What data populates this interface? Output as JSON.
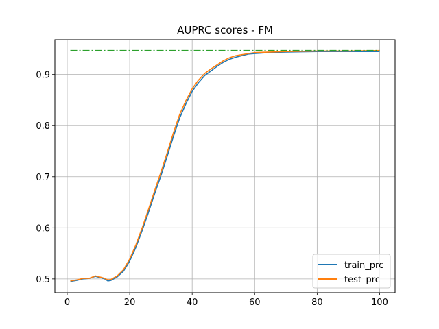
{
  "chart_data": {
    "type": "line",
    "title": "AUPRC scores - FM",
    "xlabel": "",
    "ylabel": "",
    "xlim": [
      -3.95,
      104.95
    ],
    "ylim": [
      0.473,
      0.968
    ],
    "xticks": [
      0,
      20,
      40,
      60,
      80,
      100
    ],
    "yticks": [
      0.5,
      0.6,
      0.7,
      0.8,
      0.9
    ],
    "ytick_labels": [
      "0.5",
      "0.6",
      "0.7",
      "0.8",
      "0.9"
    ],
    "grid": true,
    "legend_position": "lower-right",
    "colors": {
      "train_prc": "#1f77b4",
      "test_prc": "#ff7f0e",
      "reference": "#2ca02c"
    },
    "series": [
      {
        "name": "train_prc",
        "style": "solid",
        "points": [
          [
            1,
            0.495
          ],
          [
            3,
            0.497
          ],
          [
            5,
            0.5
          ],
          [
            7,
            0.501
          ],
          [
            9,
            0.505
          ],
          [
            11,
            0.502
          ],
          [
            12,
            0.5
          ],
          [
            13,
            0.496
          ],
          [
            14,
            0.497
          ],
          [
            16,
            0.504
          ],
          [
            18,
            0.515
          ],
          [
            20,
            0.535
          ],
          [
            22,
            0.562
          ],
          [
            24,
            0.595
          ],
          [
            26,
            0.63
          ],
          [
            28,
            0.667
          ],
          [
            30,
            0.702
          ],
          [
            32,
            0.74
          ],
          [
            34,
            0.779
          ],
          [
            36,
            0.815
          ],
          [
            38,
            0.843
          ],
          [
            40,
            0.867
          ],
          [
            42,
            0.884
          ],
          [
            44,
            0.898
          ],
          [
            46,
            0.907
          ],
          [
            48,
            0.916
          ],
          [
            50,
            0.924
          ],
          [
            52,
            0.93
          ],
          [
            54,
            0.934
          ],
          [
            56,
            0.937
          ],
          [
            58,
            0.94
          ],
          [
            60,
            0.941
          ],
          [
            65,
            0.943
          ],
          [
            70,
            0.944
          ],
          [
            80,
            0.945
          ],
          [
            90,
            0.945
          ],
          [
            100,
            0.945
          ]
        ]
      },
      {
        "name": "test_prc",
        "style": "solid",
        "points": [
          [
            1,
            0.496
          ],
          [
            3,
            0.498
          ],
          [
            5,
            0.501
          ],
          [
            7,
            0.501
          ],
          [
            9,
            0.506
          ],
          [
            11,
            0.503
          ],
          [
            12,
            0.501
          ],
          [
            13,
            0.498
          ],
          [
            14,
            0.499
          ],
          [
            16,
            0.506
          ],
          [
            18,
            0.518
          ],
          [
            20,
            0.539
          ],
          [
            22,
            0.567
          ],
          [
            24,
            0.6
          ],
          [
            26,
            0.636
          ],
          [
            28,
            0.673
          ],
          [
            30,
            0.709
          ],
          [
            32,
            0.747
          ],
          [
            34,
            0.786
          ],
          [
            36,
            0.822
          ],
          [
            38,
            0.849
          ],
          [
            40,
            0.872
          ],
          [
            42,
            0.889
          ],
          [
            44,
            0.902
          ],
          [
            46,
            0.911
          ],
          [
            48,
            0.919
          ],
          [
            50,
            0.927
          ],
          [
            52,
            0.933
          ],
          [
            54,
            0.937
          ],
          [
            56,
            0.939
          ],
          [
            58,
            0.941
          ],
          [
            60,
            0.943
          ],
          [
            65,
            0.944
          ],
          [
            70,
            0.945
          ],
          [
            80,
            0.946
          ],
          [
            90,
            0.946
          ],
          [
            100,
            0.947
          ]
        ]
      },
      {
        "style": "dashdot",
        "points": [
          [
            1,
            0.947
          ],
          [
            100,
            0.947
          ]
        ]
      }
    ]
  }
}
